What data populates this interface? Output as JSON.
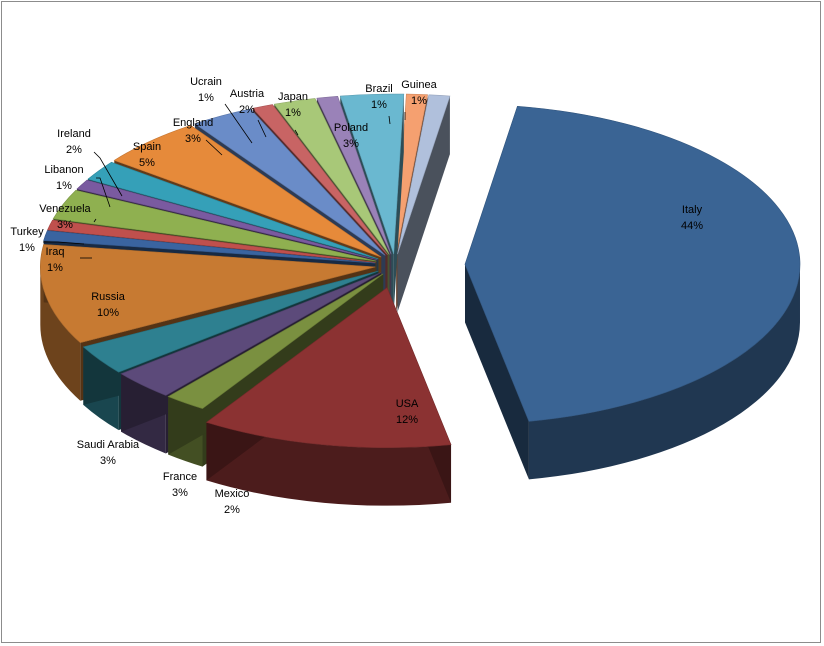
{
  "chart_data": {
    "type": "pie",
    "title": "",
    "style": "3d-exploded",
    "slices": [
      {
        "label": "Italy",
        "pct_label": "44%",
        "value": 44,
        "color": "#3a6494"
      },
      {
        "label": "USA",
        "pct_label": "12%",
        "value": 12,
        "color": "#8b3232"
      },
      {
        "label": "Mexico",
        "pct_label": "2%",
        "value": 2,
        "color": "#7a9040"
      },
      {
        "label": "France",
        "pct_label": "3%",
        "value": 3,
        "color": "#5c4a7a"
      },
      {
        "label": "Saudi Arabia",
        "pct_label": "3%",
        "value": 3,
        "color": "#2e8090"
      },
      {
        "label": "Russia",
        "pct_label": "10%",
        "value": 10,
        "color": "#c77a32"
      },
      {
        "label": "Iraq",
        "pct_label": "1%",
        "value": 1,
        "color": "#3a64a0"
      },
      {
        "label": "Turkey",
        "pct_label": "1%",
        "value": 1,
        "color": "#c0504d"
      },
      {
        "label": "Venezuela",
        "pct_label": "3%",
        "value": 3,
        "color": "#8fb050"
      },
      {
        "label": "Libanon",
        "pct_label": "1%",
        "value": 1,
        "color": "#7a5aa0"
      },
      {
        "label": "Ireland",
        "pct_label": "2%",
        "value": 2,
        "color": "#35a0b8"
      },
      {
        "label": "Spain",
        "pct_label": "5%",
        "value": 5,
        "color": "#e68a3a"
      },
      {
        "label": "England",
        "pct_label": "3%",
        "value": 3,
        "color": "#6a8cc8"
      },
      {
        "label": "Ucrain",
        "pct_label": "1%",
        "value": 1,
        "color": "#c86464"
      },
      {
        "label": "Austria",
        "pct_label": "2%",
        "value": 2,
        "color": "#a8c878"
      },
      {
        "label": "Japan",
        "pct_label": "1%",
        "value": 1,
        "color": "#9a82b8"
      },
      {
        "label": "Poland",
        "pct_label": "3%",
        "value": 3,
        "color": "#6ab8d0"
      },
      {
        "label": "Brazil",
        "pct_label": "1%",
        "value": 1,
        "color": "#f5a070"
      },
      {
        "label": "Guinea",
        "pct_label": "1%",
        "value": 1,
        "color": "#b0c0dc"
      }
    ]
  }
}
